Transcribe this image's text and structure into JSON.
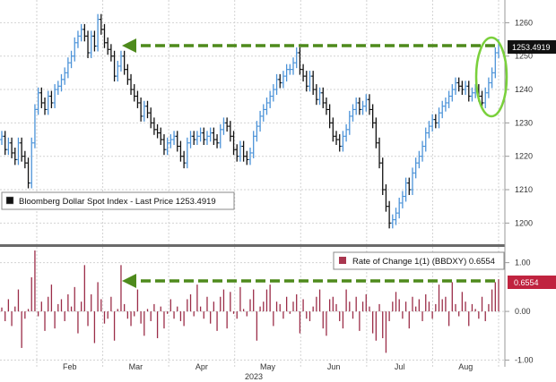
{
  "chart_data": [
    {
      "type": "ohlc",
      "legend": "Bloomberg Dollar Spot Index - Last Price 1253.4919",
      "last_value_label": "1253.4919",
      "ylim": [
        1195,
        1266
      ],
      "y_ticks": [
        "1200",
        "1210",
        "1220",
        "1230",
        "1240",
        "1250",
        "1260"
      ],
      "annotation": "dashed arrow from the latest high back to the early-March high, green ellipse around latest bars",
      "closes": [
        1226,
        1222,
        1224,
        1221,
        1219,
        1224,
        1220,
        1218,
        1212,
        1224,
        1234,
        1239,
        1236,
        1234,
        1238,
        1236,
        1240,
        1241,
        1243,
        1245,
        1248,
        1250,
        1254,
        1256,
        1258,
        1256,
        1251,
        1256,
        1253,
        1261,
        1258,
        1254,
        1252,
        1250,
        1244,
        1247,
        1250,
        1246,
        1243,
        1240,
        1238,
        1236,
        1232,
        1235,
        1233,
        1230,
        1228,
        1227,
        1225,
        1222,
        1224,
        1225,
        1226,
        1223,
        1220,
        1218,
        1224,
        1226,
        1225,
        1226,
        1227,
        1225,
        1226,
        1227,
        1225,
        1224,
        1228,
        1230,
        1229,
        1226,
        1222,
        1220,
        1223,
        1220,
        1219,
        1221,
        1226,
        1229,
        1232,
        1234,
        1236,
        1238,
        1240,
        1243,
        1242,
        1244,
        1246,
        1246,
        1248,
        1251,
        1246,
        1244,
        1241,
        1244,
        1240,
        1237,
        1239,
        1236,
        1234,
        1230,
        1226,
        1225,
        1223,
        1226,
        1228,
        1232,
        1234,
        1236,
        1234,
        1235,
        1237,
        1234,
        1230,
        1224,
        1218,
        1210,
        1205,
        1200,
        1201,
        1203,
        1206,
        1208,
        1212,
        1210,
        1215,
        1218,
        1220,
        1223,
        1227,
        1229,
        1231,
        1230,
        1233,
        1235,
        1236,
        1238,
        1240,
        1242,
        1241,
        1240,
        1241,
        1238,
        1239,
        1240,
        1238,
        1236,
        1239,
        1242,
        1245,
        1251,
        1253.49
      ]
    },
    {
      "type": "bar",
      "legend": "Rate of Change 1(1) (BBDXY) 0.6554",
      "last_value_label": "0.6554",
      "ylim": [
        -1.1,
        1.25
      ],
      "y_ticks": [
        "1.00",
        "0.00",
        "-1.00"
      ],
      "x_tick_labels": [
        "Feb",
        "Mar",
        "Apr",
        "May",
        "Jun",
        "Jul",
        "Aug"
      ],
      "year_label": "2023",
      "values": [
        0.08,
        -0.2,
        0.25,
        -0.3,
        0.1,
        0.45,
        -0.75,
        -0.15,
        0.05,
        0.7,
        1.25,
        -0.1,
        0.2,
        -0.4,
        0.3,
        0.55,
        -0.35,
        0.15,
        0.25,
        -0.2,
        0.35,
        0.1,
        0.5,
        -0.45,
        0.2,
        0.95,
        -0.3,
        0.35,
        -0.65,
        0.6,
        0.25,
        -0.25,
        -0.15,
        0.3,
        -0.6,
        0.05,
        0.95,
        0.15,
        -0.15,
        -0.3,
        -0.1,
        0.45,
        -0.25,
        -0.5,
        0.05,
        -0.2,
        0.15,
        -0.55,
        0.1,
        -0.35,
        -0.05,
        0.25,
        -0.15,
        0.1,
        -0.2,
        -0.3,
        0.25,
        0.35,
        -0.1,
        0.55,
        0.1,
        -0.15,
        0.3,
        -0.25,
        0.2,
        -0.4,
        0.3,
        0.45,
        -0.35,
        0.4,
        -0.05,
        -0.15,
        0.5,
        0.05,
        -0.1,
        0.25,
        0.45,
        -0.6,
        0.1,
        0.2,
        0.45,
        0.55,
        -0.3,
        0.2,
        0.15,
        -0.15,
        0.3,
        -0.05,
        0.2,
        0.35,
        -0.45,
        0.25,
        -0.15,
        -0.2,
        0.1,
        0.3,
        0.45,
        -0.35,
        -0.5,
        0.25,
        0.3,
        0.15,
        -0.2,
        -0.35,
        0.45,
        0.2,
        -0.15,
        0.3,
        -0.4,
        0.2,
        0.35,
        0.1,
        -0.45,
        -0.6,
        0.15,
        -0.55,
        -0.85,
        -0.2,
        0.2,
        0.4,
        0.25,
        -0.15,
        0.2,
        -0.35,
        0.3,
        0.1,
        0.25,
        -0.2,
        0.35,
        0.2,
        -0.15,
        0.15,
        0.55,
        0.25,
        0.3,
        -0.3,
        0.6,
        0.15,
        -0.1,
        0.4,
        0.2,
        -0.3,
        0.15,
        0.05,
        -0.15,
        0.3,
        -0.2,
        0.15,
        0.45,
        0.6,
        0.66
      ]
    }
  ]
}
